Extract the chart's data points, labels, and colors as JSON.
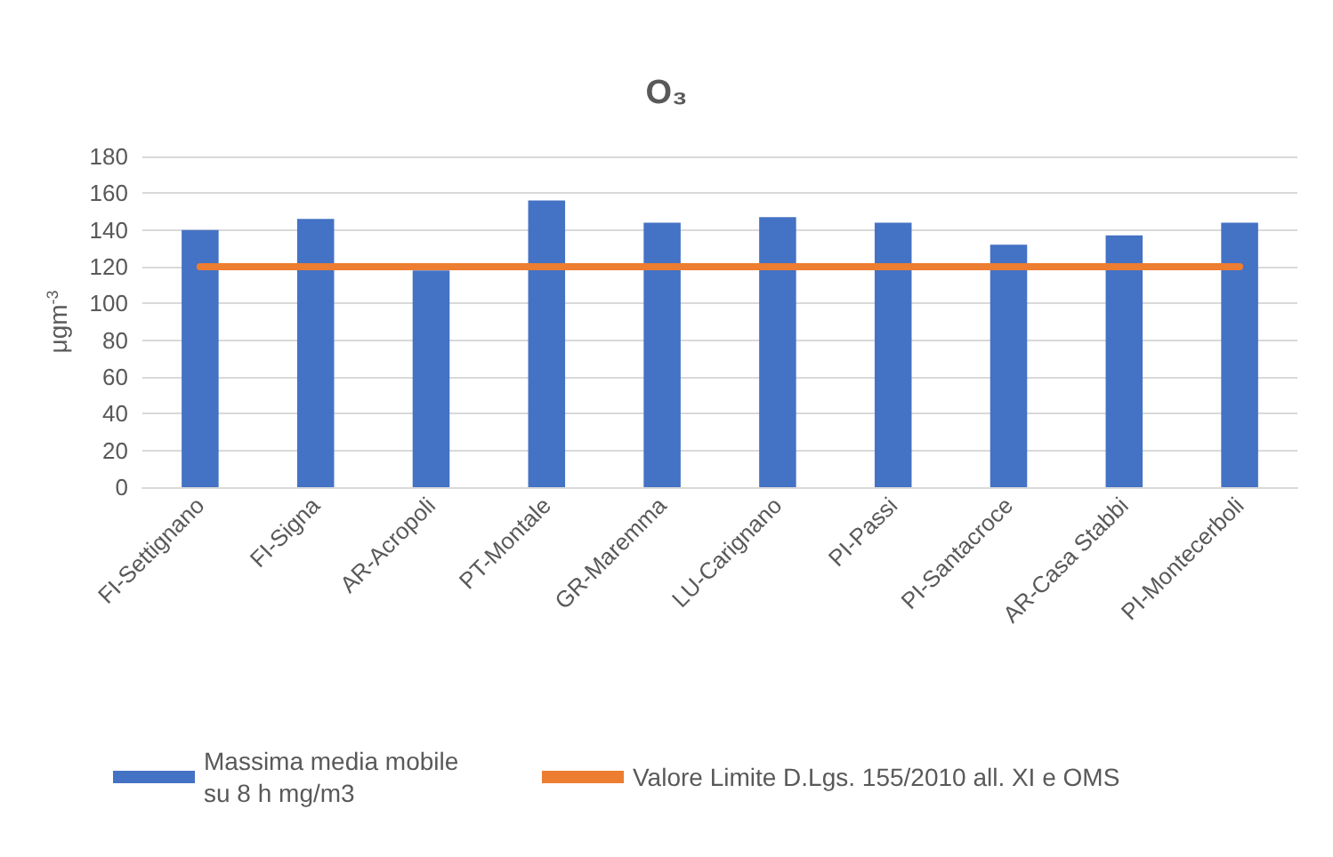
{
  "chart_data": {
    "type": "bar",
    "title": "O₃",
    "ylabel": "μgm$^{-3}$",
    "categories": [
      "FI-Settignano",
      "FI-Signa",
      "AR-Acropoli",
      "PT-Montale",
      "GR-Maremma",
      "LU-Carignano",
      "PI-Passi",
      "PI-Santacroce",
      "AR-Casa Stabbi",
      "PI-Montecerboli"
    ],
    "series": [
      {
        "name": "Massima media mobile su 8 h mg/m3",
        "color": "#4472c4",
        "values": [
          140,
          146,
          118,
          156,
          144,
          147,
          144,
          132,
          137,
          144
        ]
      },
      {
        "name": "Valore Limite D.Lgs. 155/2010 all. XI e OMS",
        "type": "line",
        "color": "#ed7d31",
        "marker": "none",
        "values": [
          120,
          120,
          120,
          120,
          120,
          120,
          120,
          120,
          120,
          120
        ]
      }
    ],
    "ylim": [
      0,
      180
    ],
    "yticks": [
      0,
      20,
      40,
      60,
      80,
      100,
      120,
      140,
      160,
      180
    ],
    "grid": "y",
    "legend": "bottom"
  }
}
